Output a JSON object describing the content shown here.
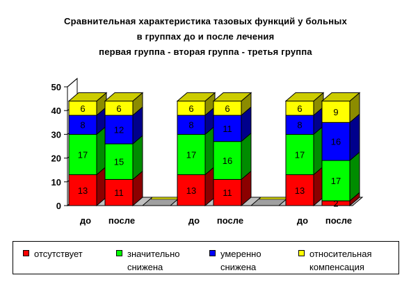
{
  "header": {
    "title_line1": "Сравнительная характеристика тазовых функций у больных",
    "title_line2": "в  группах до и после лечения",
    "title_line3": "первая группа   - вторая группа  -  третья группа"
  },
  "chart_data": {
    "type": "bar",
    "stacked": true,
    "three_d": true,
    "categories": [
      "до",
      "после",
      "до",
      "после",
      "до",
      "после"
    ],
    "groups": 3,
    "series": [
      {
        "name": "отсутствует",
        "color": "#ff0000",
        "values": [
          13,
          11,
          13,
          11,
          13,
          2
        ]
      },
      {
        "name": "значительно снижена",
        "color": "#00ff00",
        "values": [
          17,
          15,
          17,
          16,
          17,
          17
        ]
      },
      {
        "name": "умеренно снижена",
        "color": "#0000ff",
        "values": [
          8,
          12,
          8,
          11,
          8,
          16
        ]
      },
      {
        "name": "относительная компенсация",
        "color": "#ffff00",
        "values": [
          6,
          6,
          6,
          6,
          6,
          9
        ]
      }
    ],
    "yticks": [
      "0",
      "10",
      "20",
      "30",
      "40",
      "50"
    ],
    "ylim": [
      0,
      50
    ],
    "grid": false,
    "legend_position": "bottom"
  },
  "legend": {
    "items": [
      {
        "line1": "отсутствует",
        "line2": "",
        "color": "#ff0000"
      },
      {
        "line1": "значительно",
        "line2": "снижена",
        "color": "#00ff00"
      },
      {
        "line1": "умеренно",
        "line2": "снижена",
        "color": "#0000ff"
      },
      {
        "line1": "относительная",
        "line2": "компенсация",
        "color": "#ffff00"
      }
    ]
  }
}
